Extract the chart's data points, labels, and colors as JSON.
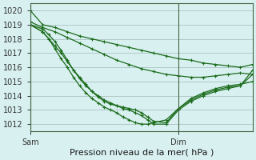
{
  "title": "Pression niveau de la mer( hPa )",
  "bg_color": "#d8f0f0",
  "grid_color": "#b0c8c8",
  "line_color": "#1a6b1a",
  "marker_color": "#1a6b1a",
  "ylim": [
    1011.5,
    1020.5
  ],
  "xlim": [
    0,
    36
  ],
  "yticks": [
    1012,
    1013,
    1014,
    1015,
    1016,
    1017,
    1018,
    1019,
    1020
  ],
  "sam_x": 0,
  "dim_x": 24,
  "series": [
    {
      "x": [
        0,
        2,
        4,
        6,
        8,
        10,
        12,
        14,
        16,
        18,
        20,
        22,
        24,
        26,
        28,
        30,
        32,
        34,
        36
      ],
      "y": [
        1020.0,
        1019.0,
        1018.8,
        1018.5,
        1018.2,
        1018.0,
        1017.8,
        1017.6,
        1017.4,
        1017.2,
        1017.0,
        1016.8,
        1016.6,
        1016.5,
        1016.3,
        1016.2,
        1016.1,
        1016.0,
        1016.2
      ]
    },
    {
      "x": [
        0,
        2,
        4,
        6,
        8,
        10,
        12,
        14,
        16,
        18,
        20,
        22,
        24,
        26,
        28,
        30,
        32,
        34,
        36
      ],
      "y": [
        1019.2,
        1018.8,
        1018.5,
        1018.1,
        1017.7,
        1017.3,
        1016.9,
        1016.5,
        1016.2,
        1015.9,
        1015.7,
        1015.5,
        1015.4,
        1015.3,
        1015.3,
        1015.4,
        1015.5,
        1015.6,
        1015.5
      ]
    },
    {
      "x": [
        0,
        2,
        3,
        4,
        5,
        6,
        7,
        8,
        9,
        10,
        11,
        12,
        13,
        14,
        15,
        16,
        17,
        18,
        19,
        20,
        22,
        24,
        26,
        28,
        30,
        32,
        34,
        36
      ],
      "y": [
        1019.0,
        1018.5,
        1018.0,
        1017.5,
        1017.0,
        1016.4,
        1015.8,
        1015.3,
        1014.8,
        1014.3,
        1013.9,
        1013.6,
        1013.4,
        1013.3,
        1013.2,
        1013.1,
        1013.0,
        1012.8,
        1012.5,
        1012.2,
        1012.1,
        1013.1,
        1013.8,
        1014.2,
        1014.5,
        1014.7,
        1014.8,
        1015.0
      ]
    },
    {
      "x": [
        0,
        2,
        3,
        4,
        5,
        6,
        7,
        8,
        9,
        10,
        11,
        12,
        13,
        14,
        15,
        16,
        17,
        18,
        19,
        20,
        22,
        24,
        26,
        28,
        30,
        32,
        34,
        36
      ],
      "y": [
        1019.0,
        1018.5,
        1018.0,
        1017.3,
        1016.6,
        1016.0,
        1015.3,
        1014.7,
        1014.2,
        1013.8,
        1013.5,
        1013.2,
        1013.0,
        1012.8,
        1012.5,
        1012.3,
        1012.1,
        1012.0,
        1012.0,
        1012.1,
        1012.3,
        1013.1,
        1013.7,
        1014.1,
        1014.4,
        1014.6,
        1014.7,
        1015.5
      ]
    },
    {
      "x": [
        0,
        2,
        3,
        4,
        5,
        6,
        7,
        8,
        9,
        10,
        11,
        12,
        13,
        14,
        15,
        16,
        17,
        18,
        19,
        20,
        22,
        24,
        26,
        28,
        30,
        32,
        34,
        36
      ],
      "y": [
        1019.0,
        1018.7,
        1018.3,
        1017.8,
        1017.2,
        1016.5,
        1015.8,
        1015.2,
        1014.7,
        1014.3,
        1014.0,
        1013.7,
        1013.5,
        1013.3,
        1013.1,
        1013.0,
        1012.8,
        1012.6,
        1012.3,
        1012.0,
        1012.0,
        1013.0,
        1013.6,
        1014.0,
        1014.3,
        1014.5,
        1014.7,
        1015.8
      ]
    }
  ]
}
